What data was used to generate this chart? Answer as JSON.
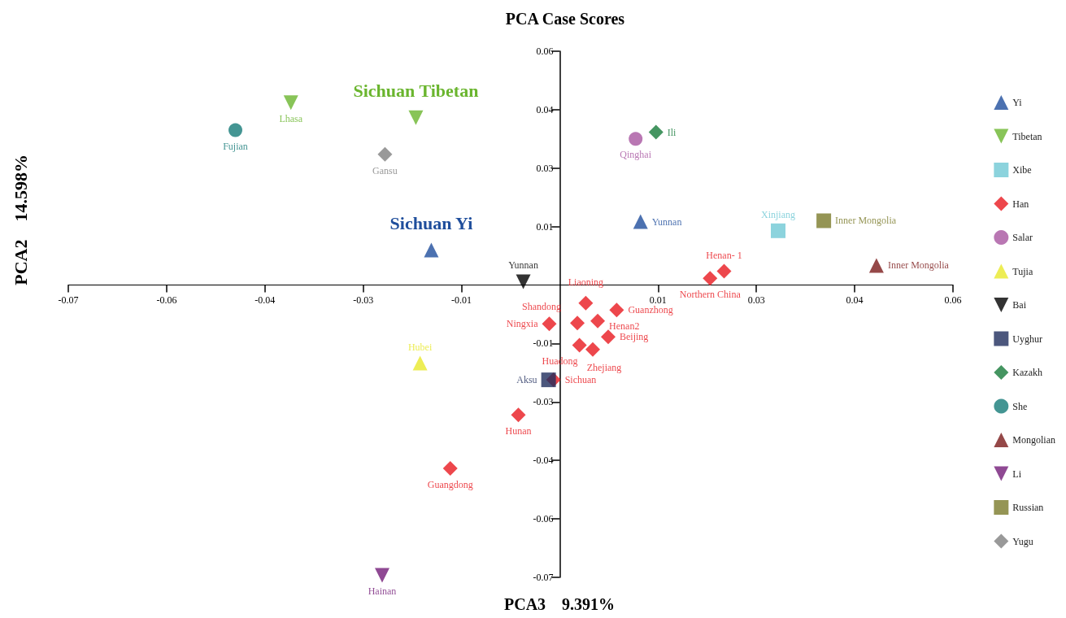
{
  "chart_data": {
    "type": "scatter",
    "title": "PCA Case Scores",
    "xlabel": "PCA3    9.391%",
    "ylabel": "PCA2    14.598%",
    "xlim": [
      -0.07,
      0.056
    ],
    "ylim": [
      -0.07,
      0.056
    ],
    "xticks": [
      {
        "value": -0.07,
        "label": "-0.07"
      },
      {
        "value": -0.056,
        "label": "-0.06"
      },
      {
        "value": -0.042,
        "label": "-0.04"
      },
      {
        "value": -0.028,
        "label": "-0.03"
      },
      {
        "value": -0.014,
        "label": "-0.01"
      },
      {
        "value": 0.014,
        "label": "0.01"
      },
      {
        "value": 0.028,
        "label": "0.03"
      },
      {
        "value": 0.042,
        "label": "0.04"
      },
      {
        "value": 0.056,
        "label": "0.06"
      }
    ],
    "yticks": [
      {
        "value": -0.07,
        "label": "-0.07"
      },
      {
        "value": -0.056,
        "label": "-0.06"
      },
      {
        "value": -0.042,
        "label": "-0.04"
      },
      {
        "value": -0.028,
        "label": "-0.03"
      },
      {
        "value": -0.014,
        "label": "-0.01"
      },
      {
        "value": 0.014,
        "label": "0.01"
      },
      {
        "value": 0.028,
        "label": "0.03"
      },
      {
        "value": 0.042,
        "label": "0.04"
      },
      {
        "value": 0.056,
        "label": "0.06"
      }
    ],
    "grid": false,
    "legend": "right",
    "series": [
      {
        "name": "Yi",
        "color": "#1f4e9c",
        "marker": "triangle",
        "x": [
          -0.0183,
          0.0115
        ],
        "values": [
          0.0084,
          0.0152
        ],
        "value_labels": [
          null,
          "Yunnan"
        ]
      },
      {
        "name": "Tibetan",
        "color": "#6ab52e",
        "marker": "triangle-down",
        "x": [
          -0.0383,
          -0.0205
        ],
        "values": [
          0.0437,
          0.0401
        ],
        "value_labels": [
          "Lhasa",
          null
        ]
      },
      {
        "name": "Xibe",
        "color": "#6fc8d4",
        "marker": "square",
        "x": [
          0.0311
        ],
        "values": [
          0.013
        ],
        "value_labels": [
          "Xinjiang"
        ]
      },
      {
        "name": "Han",
        "color": "#e8191f",
        "marker": "diamond",
        "x": [
          0.0234,
          0.0214,
          0.0037,
          0.0081,
          0.0025,
          -0.0015,
          0.0054,
          0.0069,
          0.0028,
          0.0047,
          -0.0009,
          -0.0059,
          -0.0156
        ],
        "values": [
          0.0033,
          0.0016,
          -0.0043,
          -0.006,
          -0.0091,
          -0.0093,
          -0.0086,
          -0.0124,
          -0.0144,
          -0.0154,
          -0.0227,
          -0.0311,
          -0.0439
        ],
        "value_labels": [
          "Henan- 1",
          "Northern China",
          "Liaoning",
          "Guanzhong",
          "Shandong",
          "Ningxia",
          "Henan2",
          "Beijing",
          "Huadong",
          "Zhejiang",
          "Sichuan",
          "Hunan",
          "Guangdong"
        ]
      },
      {
        "name": "Salar",
        "color": "#a855a0",
        "marker": "circle",
        "x": [
          0.0108
        ],
        "values": [
          0.035
        ],
        "value_labels": [
          "Qinghai"
        ]
      },
      {
        "name": "Tujia",
        "color": "#e8e82a",
        "marker": "triangle",
        "x": [
          -0.0199
        ],
        "values": [
          -0.0187
        ],
        "value_labels": [
          "Hubei"
        ]
      },
      {
        "name": "Bai",
        "color": "#000000",
        "marker": "triangle-down",
        "x": [
          -0.0052
        ],
        "values": [
          0.0008
        ],
        "value_labels": [
          "Yunnan"
        ]
      },
      {
        "name": "Uyghur",
        "color": "#1f2d5c",
        "marker": "square",
        "x": [
          -0.0016
        ],
        "values": [
          -0.0227
        ],
        "value_labels": [
          "Aksu"
        ]
      },
      {
        "name": "Kazakh",
        "color": "#167a3a",
        "marker": "diamond",
        "x": [
          0.0137
        ],
        "values": [
          0.0366
        ],
        "value_labels": [
          "Ili"
        ]
      },
      {
        "name": "She",
        "color": "#157a78",
        "marker": "circle",
        "x": [
          -0.0462
        ],
        "values": [
          0.0371
        ],
        "value_labels": [
          "Fujian"
        ]
      },
      {
        "name": "Mongolian",
        "color": "#7a1a1a",
        "marker": "triangle",
        "x": [
          0.0451
        ],
        "values": [
          0.0047
        ],
        "value_labels": [
          "Inner Mongolia"
        ]
      },
      {
        "name": "Li",
        "color": "#731c78",
        "marker": "triangle-down",
        "x": [
          -0.0253
        ],
        "values": [
          -0.0695
        ],
        "value_labels": [
          "Hainan"
        ]
      },
      {
        "name": "Russian",
        "color": "#7a7a2a",
        "marker": "square",
        "x": [
          0.0376
        ],
        "values": [
          0.0154
        ],
        "value_labels": [
          "Inner Mongolia"
        ]
      },
      {
        "name": "Yugu",
        "color": "#808080",
        "marker": "diamond",
        "x": [
          -0.0249
        ],
        "values": [
          0.0313
        ],
        "value_labels": [
          "Gansu"
        ]
      }
    ],
    "annotations": [
      {
        "text": "Sichuan Tibetan",
        "x": -0.0205,
        "y": 0.0401
      },
      {
        "text": "Sichuan Yi",
        "x": -0.0183,
        "y": 0.0084
      }
    ]
  }
}
